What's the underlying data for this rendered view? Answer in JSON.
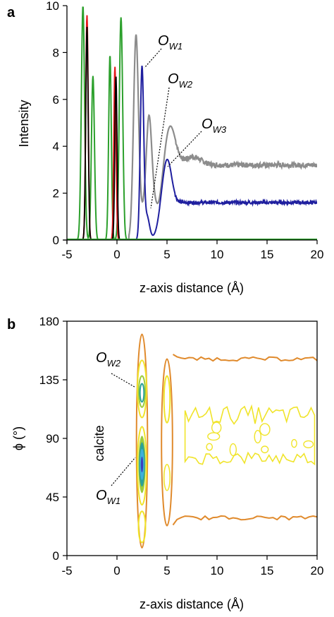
{
  "colors": {
    "green": "#2ca02c",
    "red": "#e41a1c",
    "black": "#000000",
    "gray": "#8c8c8c",
    "blue": "#1f1f9f",
    "orange": "#e08a2c",
    "yellow": "#f0e42a",
    "teal": "#2aa198",
    "cyan": "#3fb1d9",
    "darkblue": "#3a3fbf"
  },
  "chart_data": [
    {
      "type": "line",
      "panel_label": "a",
      "xlabel": "z-axis distance (Å)",
      "ylabel": "Intensity",
      "xlim": [
        -5,
        20
      ],
      "ylim": [
        0,
        10
      ],
      "xticks": [
        "-5",
        "0",
        "5",
        "10",
        "15",
        "20"
      ],
      "yticks": [
        "0",
        "2",
        "4",
        "6",
        "8",
        "10"
      ],
      "annotations": [
        {
          "base": "O",
          "sub": "W1",
          "x": 2.4,
          "y": 7.0
        },
        {
          "base": "O",
          "sub": "W2",
          "x": 3.3,
          "y": 3.6
        },
        {
          "base": "O",
          "sub": "W3",
          "x": 5.3,
          "y": 3.0
        }
      ],
      "series": [
        {
          "color_key": "green",
          "peaks": [
            {
              "center": -3.4,
              "height": 10.0,
              "width": 0.16
            },
            {
              "center": -2.4,
              "height": 7.0,
              "width": 0.15
            },
            {
              "center": -0.7,
              "height": 7.9,
              "width": 0.13
            },
            {
              "center": 0.4,
              "height": 9.5,
              "width": 0.17
            }
          ]
        },
        {
          "color_key": "red",
          "peaks": [
            {
              "center": -3.0,
              "height": 9.6,
              "width": 0.12
            },
            {
              "center": -0.2,
              "height": 7.4,
              "width": 0.11
            }
          ]
        },
        {
          "color_key": "black",
          "peaks": [
            {
              "center": -3.0,
              "height": 9.1,
              "width": 0.12
            },
            {
              "center": -0.1,
              "height": 7.0,
              "width": 0.11
            }
          ]
        },
        {
          "color_key": "gray",
          "plateau": 3.2,
          "peaks": [
            {
              "center": 1.9,
              "height": 8.5
            },
            {
              "center": 3.2,
              "height": 5.3
            },
            {
              "center": 5.3,
              "height": 4.3
            }
          ]
        },
        {
          "color_key": "blue",
          "plateau": 1.6,
          "peaks": [
            {
              "center": 2.5,
              "height": 7.3
            },
            {
              "center": 3.0,
              "height": 1.2
            },
            {
              "center": 5.0,
              "height": 3.1
            }
          ]
        }
      ]
    },
    {
      "type": "contour",
      "panel_label": "b",
      "xlabel": "z-axis distance (Å)",
      "ylabel": "ϕ (°)",
      "xlim": [
        -5,
        20
      ],
      "ylim": [
        0,
        180
      ],
      "xticks": [
        "-5",
        "0",
        "5",
        "10",
        "15",
        "20"
      ],
      "yticks": [
        "0",
        "45",
        "90",
        "135",
        "180"
      ],
      "region_label": "calcite",
      "annotations": [
        {
          "base": "O",
          "sub": "W2",
          "x": 2.5,
          "y": 128
        },
        {
          "base": "O",
          "sub": "W1",
          "x": 2.5,
          "y": 70
        }
      ],
      "features": [
        {
          "name": "Ow1-Ow2 layer",
          "z": 2.5,
          "phi_range": [
            5,
            170
          ],
          "maxima_phi": [
            70,
            125
          ]
        },
        {
          "name": "Ow3 layer",
          "z": 5.0,
          "phi_range": [
            25,
            150
          ]
        },
        {
          "name": "bulk water",
          "z_range": [
            6,
            20
          ],
          "phi_range": [
            28,
            152
          ]
        }
      ]
    }
  ]
}
